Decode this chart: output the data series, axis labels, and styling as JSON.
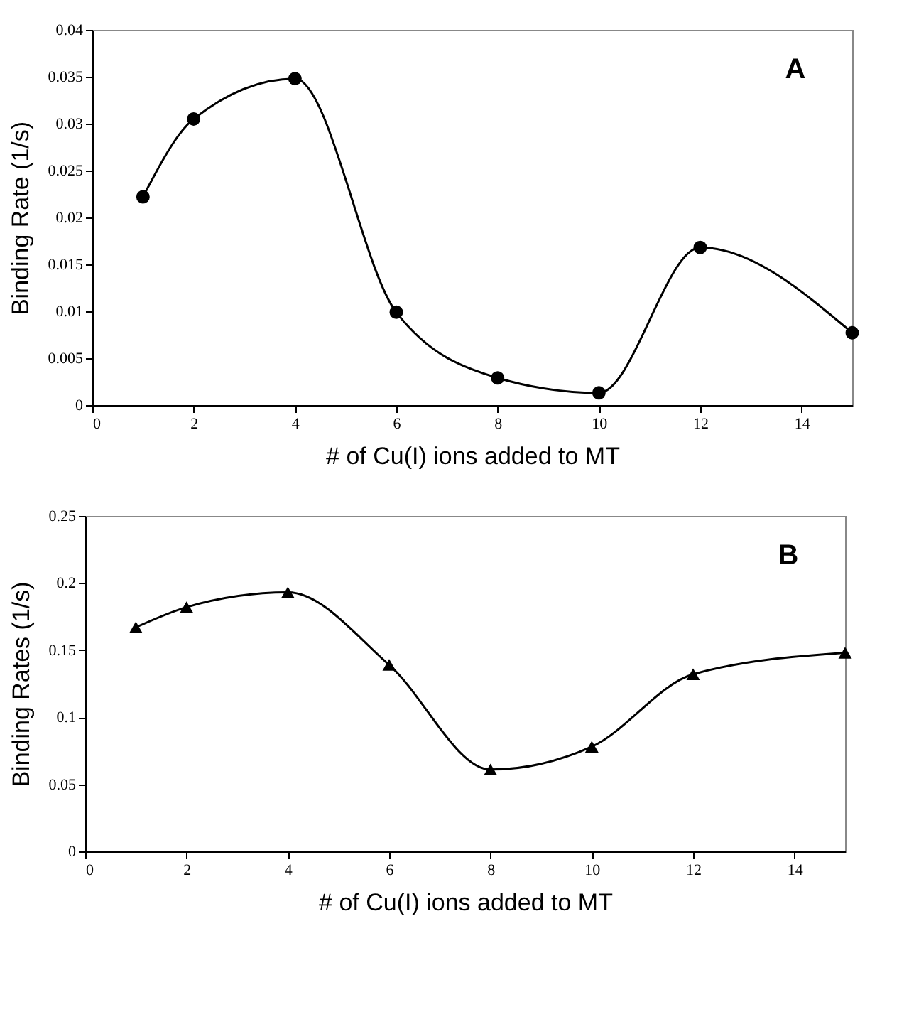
{
  "chart_data": [
    {
      "type": "line",
      "x": [
        1,
        2,
        4,
        6,
        8,
        10,
        12,
        15
      ],
      "xlabel": "# of Cu(I) ions added to MT",
      "ylabel": "Binding Rate (1/s)",
      "xlim": [
        0,
        15
      ],
      "xticks": [
        0,
        2,
        4,
        6,
        8,
        10,
        12,
        14
      ],
      "ylim": [
        0,
        0.04
      ],
      "yticks": [
        0,
        0.005,
        0.01,
        0.015,
        0.02,
        0.025,
        0.03,
        0.035,
        0.04
      ],
      "marker": "circle",
      "annotations": [
        "A"
      ],
      "series": [
        {
          "color": "#000000",
          "values": [
            0.0222,
            0.0305,
            0.0348,
            0.0099,
            0.0029,
            0.0013,
            0.0168,
            0.0077
          ]
        }
      ]
    },
    {
      "type": "line",
      "x": [
        1,
        2,
        4,
        6,
        8,
        10,
        12,
        15
      ],
      "xlabel": "# of Cu(I) ions added to MT",
      "ylabel": "Binding Rates (1/s)",
      "xlim": [
        0,
        15
      ],
      "xticks": [
        0,
        2,
        4,
        6,
        8,
        10,
        12,
        14
      ],
      "ylim": [
        0,
        0.25
      ],
      "yticks": [
        0,
        0.05,
        0.1,
        0.15,
        0.2,
        0.25
      ],
      "marker": "triangle",
      "annotations": [
        "B"
      ],
      "series": [
        {
          "color": "#000000",
          "values": [
            0.167,
            0.182,
            0.193,
            0.139,
            0.061,
            0.078,
            0.132,
            0.148
          ]
        }
      ]
    }
  ]
}
